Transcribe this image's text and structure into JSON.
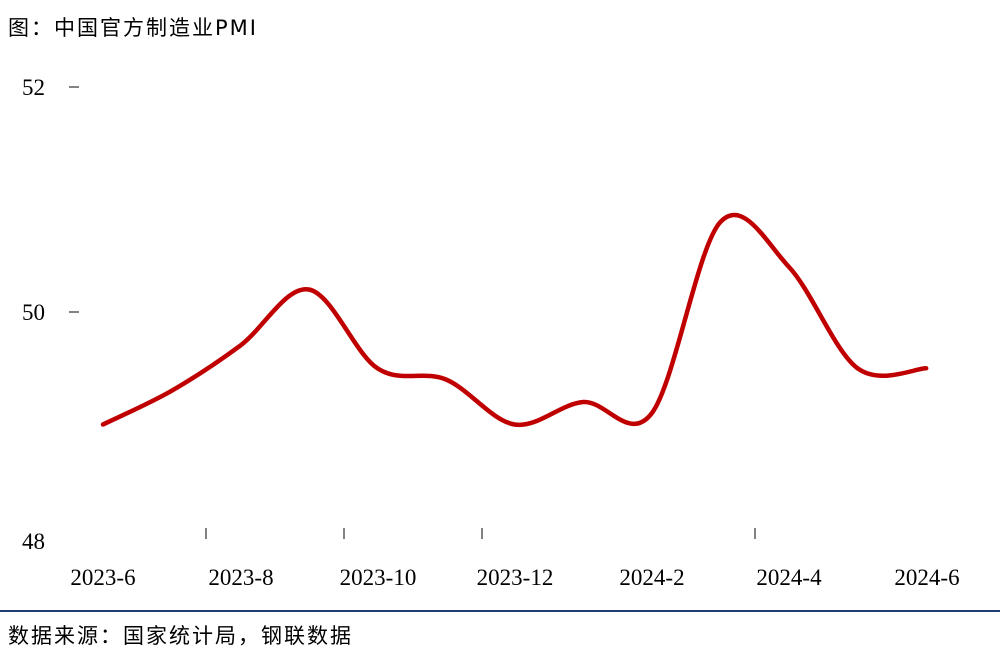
{
  "header": {
    "title": "图：中国官方制造业PMI"
  },
  "footer": {
    "source": "数据来源：国家统计局，钢联数据"
  },
  "style": {
    "line_color": "#C00000",
    "separator_color": "#1F3F73",
    "tick_color": "#404040"
  },
  "axis": {
    "y_ticks": [
      "52",
      "50",
      "48"
    ],
    "x_ticks": [
      "2023-6",
      "2023-8",
      "2023-10",
      "2023-12",
      "2024-2",
      "2024-4",
      "2024-6"
    ]
  },
  "chart_data": {
    "type": "line",
    "title": "图：中国官方制造业PMI",
    "xlabel": "",
    "ylabel": "",
    "categories": [
      "2023-6",
      "2023-7",
      "2023-8",
      "2023-9",
      "2023-10",
      "2023-11",
      "2023-12",
      "2024-1",
      "2024-2",
      "2024-3",
      "2024-4",
      "2024-5",
      "2024-6"
    ],
    "series": [
      {
        "name": "中国官方制造业PMI",
        "values": [
          49.0,
          49.3,
          49.7,
          50.2,
          49.5,
          49.4,
          49.0,
          49.2,
          49.1,
          50.8,
          50.4,
          49.5,
          49.5
        ]
      }
    ],
    "x_tick_labels": [
      "2023-6",
      "2023-8",
      "2023-10",
      "2023-12",
      "2024-2",
      "2024-4",
      "2024-6"
    ],
    "y_tick_labels": [
      "48",
      "50",
      "52"
    ],
    "ylim": [
      48,
      52
    ],
    "grid": false,
    "legend": "none",
    "source": "数据来源：国家统计局，钢联数据"
  }
}
